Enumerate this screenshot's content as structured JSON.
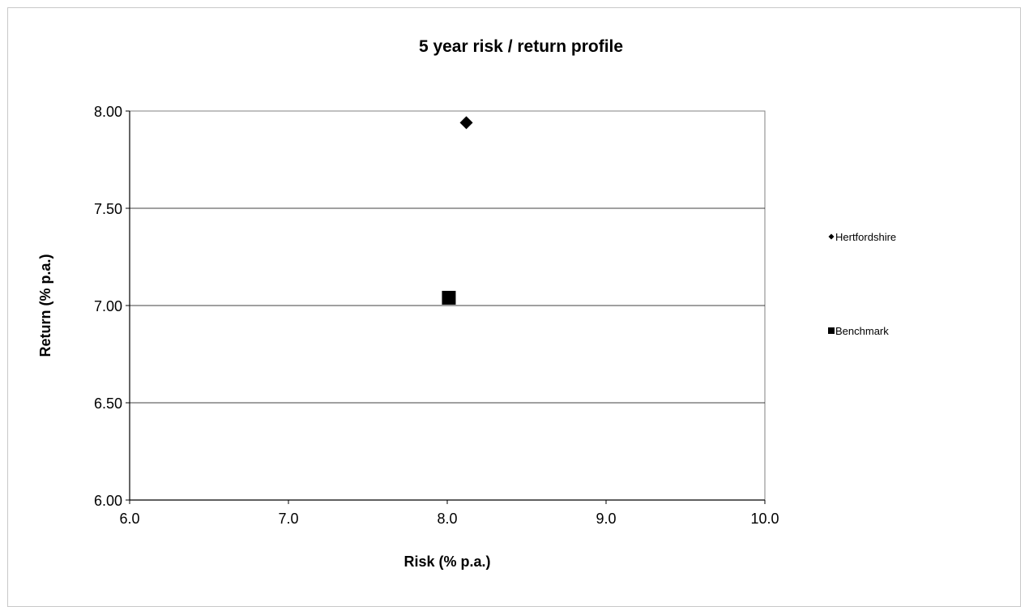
{
  "chart_data": {
    "type": "scatter",
    "title": "5 year risk / return profile",
    "xlabel": "Risk (% p.a.)",
    "ylabel": "Return (% p.a.)",
    "xlim": [
      6.0,
      10.0
    ],
    "ylim": [
      6.0,
      8.0
    ],
    "x_ticks": [
      "6.0",
      "7.0",
      "8.0",
      "9.0",
      "10.0"
    ],
    "y_ticks": [
      "6.00",
      "6.50",
      "7.00",
      "7.50",
      "8.00"
    ],
    "grid": "horizontal",
    "legend_position": "right",
    "series": [
      {
        "name": "Hertfordshire",
        "marker": "diamond",
        "color": "#000000",
        "x": 8.12,
        "y": 7.94
      },
      {
        "name": "Benchmark",
        "marker": "square",
        "color": "#000000",
        "x": 8.01,
        "y": 7.04
      }
    ]
  }
}
